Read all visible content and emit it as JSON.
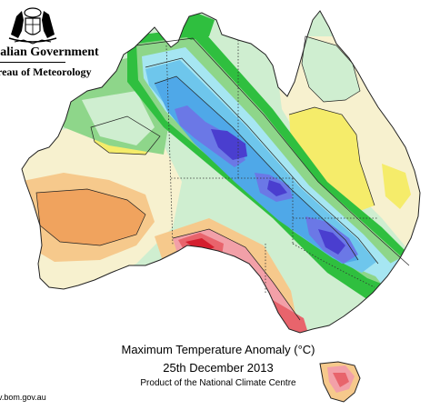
{
  "header": {
    "org_line1": "ralian Government",
    "org_line2": "reau of Meteorology"
  },
  "caption": {
    "title": "Maximum Temperature Anomaly (°C)",
    "date": "25th December 2013",
    "credit": "Product of the National Climate Centre"
  },
  "footer": {
    "url": "v.bom.gov.au"
  },
  "colors": {
    "deep_blue": "#4a3ecf",
    "blue": "#6b78e6",
    "mid_blue": "#4fa8e8",
    "light_blue": "#6ec6ec",
    "cyan": "#a6e6f2",
    "green_strong": "#2fbf3f",
    "green": "#8ed68a",
    "pale_green": "#cfeed0",
    "cream": "#f7f1cf",
    "yellow": "#f5ec6a",
    "orange_light": "#f6c98c",
    "orange": "#f0a35e",
    "pink": "#f2a0a8",
    "red_light": "#e8646c",
    "red": "#d41e2e"
  },
  "icons": {
    "crest": "coat-of-arms-icon"
  }
}
